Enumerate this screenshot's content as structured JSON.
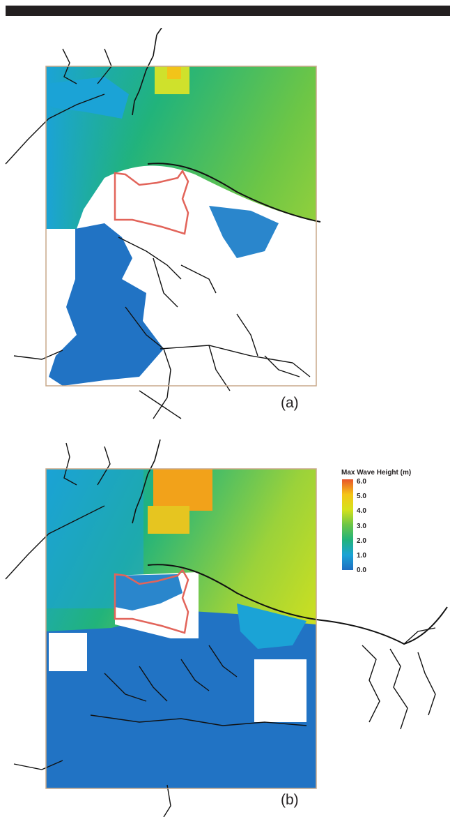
{
  "figure": {
    "panels": [
      {
        "id": "a",
        "label": "(a)"
      },
      {
        "id": "b",
        "label": "(b)"
      }
    ],
    "legend": {
      "title": "Max Wave Height (m)",
      "ticks": [
        "6.0",
        "5.0",
        "4.0",
        "3.0",
        "2.0",
        "1.0",
        "0.0"
      ],
      "colors": [
        "#e8542a",
        "#f5c518",
        "#d6e21c",
        "#6dc646",
        "#21b37b",
        "#1ba3d6",
        "#1e6ec2"
      ]
    },
    "colors": {
      "shelf_water": "#2ab37a",
      "shallow_water": "#1ba8d8",
      "deep_water": "#2173c4",
      "high_wave": "#cfe12c",
      "extreme_wave": "#f2a21a",
      "study_boundary": "#e2645a",
      "coastline": "#111111",
      "frame": "#c9a98a"
    }
  }
}
